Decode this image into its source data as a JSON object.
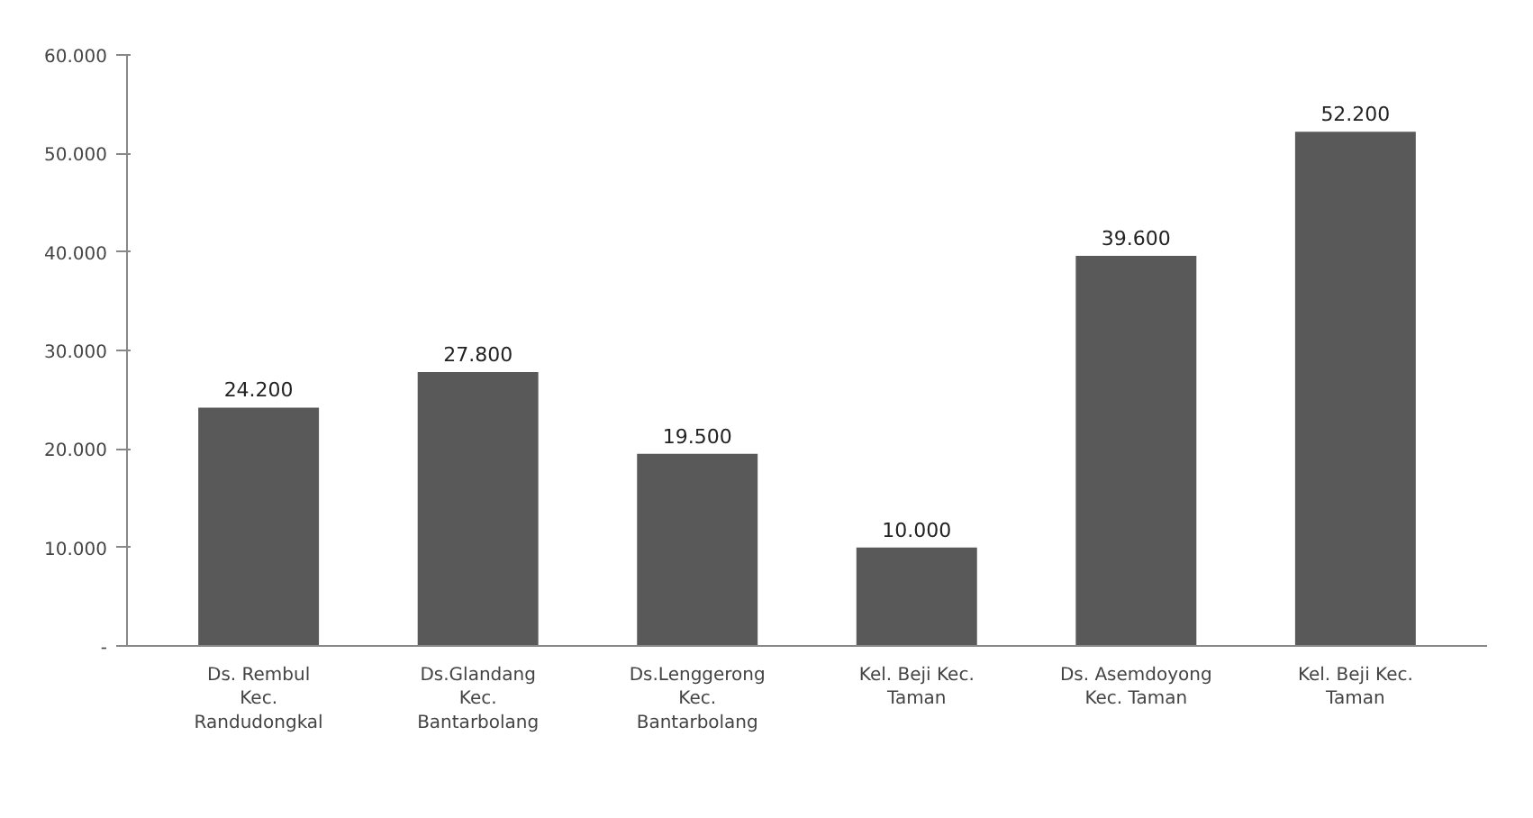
{
  "chart_data": {
    "type": "bar",
    "categories": [
      "Ds. Rembul Kec. Randudongkal",
      "Ds.Glandang Kec. Bantarbolang",
      "Ds.Lenggerong Kec. Bantarbolang",
      "Kel. Beji Kec. Taman",
      "Ds. Asemdoyong Kec. Taman",
      "Kel. Beji Kec. Taman"
    ],
    "values": [
      24200,
      27800,
      19500,
      10000,
      39600,
      52200
    ],
    "value_labels": [
      "24.200",
      "27.800",
      "19.500",
      "10.000",
      "39.600",
      "52.200"
    ],
    "color": "#595959",
    "ylim": [
      0,
      60000
    ],
    "yticks": [
      {
        "value": 0,
        "label": "-"
      },
      {
        "value": 10000,
        "label": "10.000"
      },
      {
        "value": 20000,
        "label": "20.000"
      },
      {
        "value": 30000,
        "label": "30.000"
      },
      {
        "value": 40000,
        "label": "40.000"
      },
      {
        "value": 50000,
        "label": "50.000"
      },
      {
        "value": 60000,
        "label": "60.000"
      }
    ],
    "grid": false
  }
}
